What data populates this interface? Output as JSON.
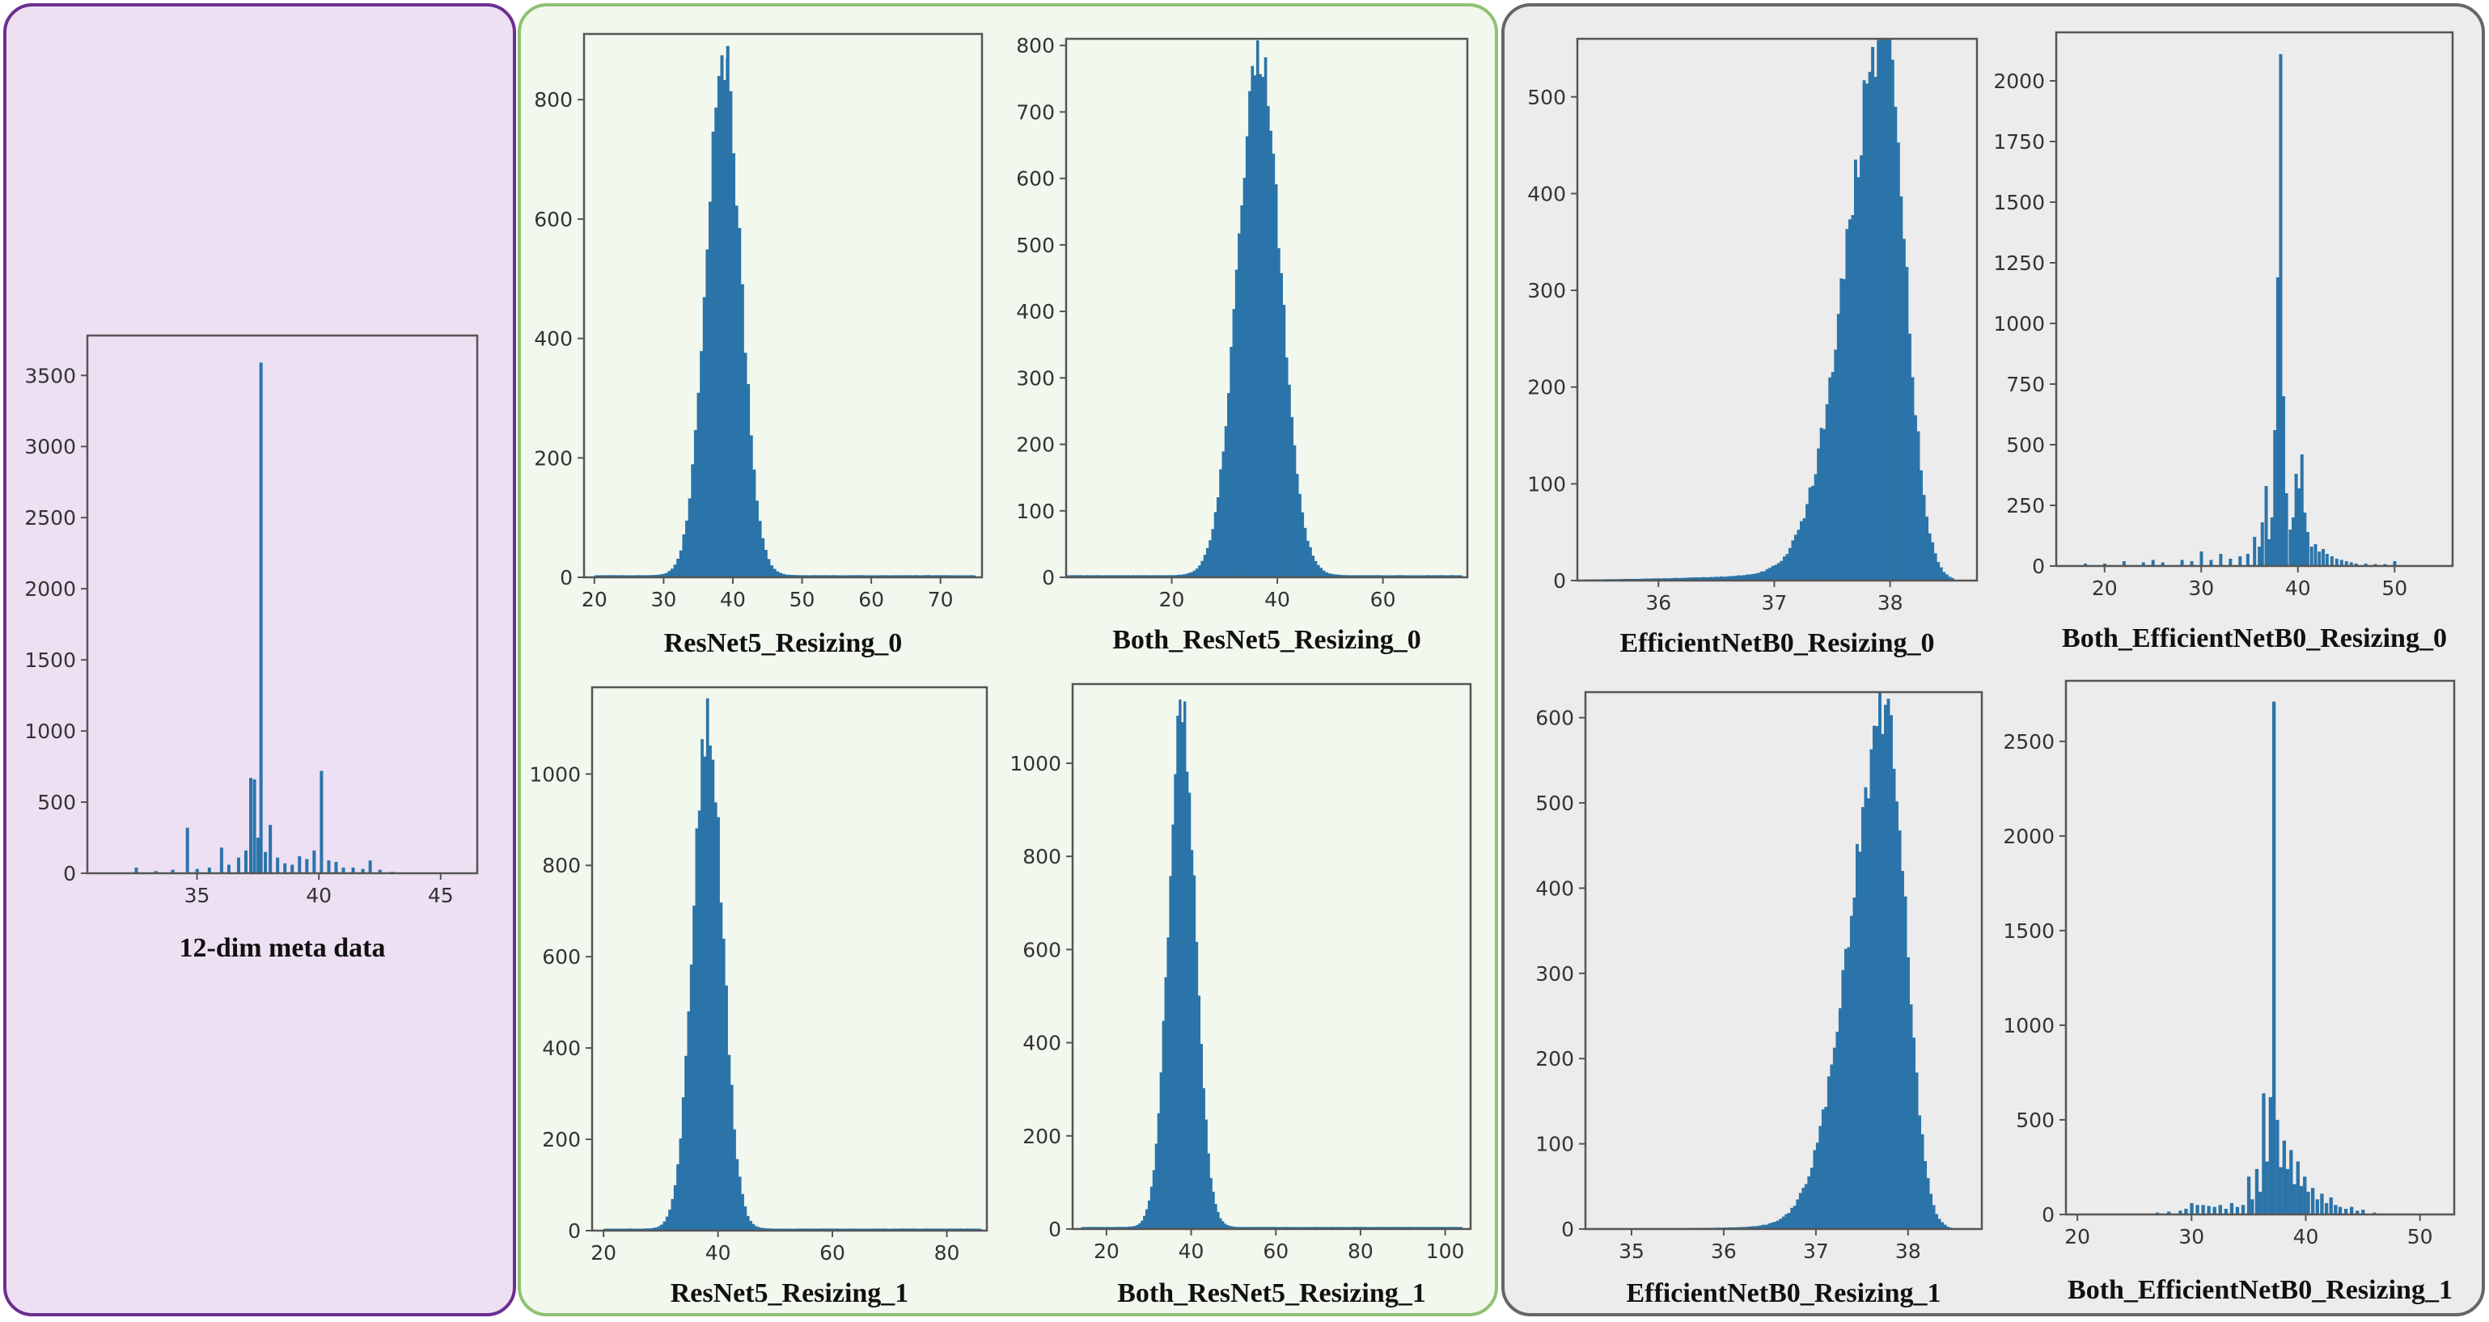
{
  "figure": {
    "groups": [
      {
        "name": "meta",
        "bg": "#ede0f3",
        "border": "#6b2f8f"
      },
      {
        "name": "resnet",
        "bg": "#f2f8ee",
        "border": "#8fc272"
      },
      {
        "name": "efficientnet",
        "bg": "#ececec",
        "border": "#666666"
      }
    ],
    "bar_color": "#2b74a9",
    "axes_color": "#555555"
  },
  "chart_data": [
    {
      "id": "meta",
      "type": "bar",
      "title": "12-dim meta data",
      "xlim": [
        30.5,
        46.5
      ],
      "ylim": [
        0,
        3780
      ],
      "xticks": [
        35,
        40,
        45
      ],
      "yticks": [
        0,
        500,
        1000,
        1500,
        2000,
        2500,
        3000,
        3500
      ],
      "bin_width": 0.12,
      "bins": [
        [
          32.5,
          40
        ],
        [
          33.3,
          15
        ],
        [
          34.0,
          25
        ],
        [
          34.6,
          320
        ],
        [
          35.0,
          30
        ],
        [
          35.5,
          40
        ],
        [
          36.0,
          180
        ],
        [
          36.3,
          60
        ],
        [
          36.7,
          110
        ],
        [
          37.0,
          160
        ],
        [
          37.2,
          670
        ],
        [
          37.35,
          660
        ],
        [
          37.5,
          250
        ],
        [
          37.62,
          3590
        ],
        [
          37.8,
          150
        ],
        [
          38.0,
          340
        ],
        [
          38.3,
          110
        ],
        [
          38.6,
          70
        ],
        [
          38.9,
          60
        ],
        [
          39.2,
          120
        ],
        [
          39.5,
          100
        ],
        [
          39.8,
          160
        ],
        [
          40.1,
          720
        ],
        [
          40.4,
          90
        ],
        [
          40.7,
          80
        ],
        [
          41.0,
          40
        ],
        [
          41.4,
          40
        ],
        [
          41.8,
          30
        ],
        [
          42.1,
          90
        ],
        [
          42.5,
          25
        ],
        [
          43.0,
          10
        ]
      ]
    },
    {
      "id": "r0",
      "type": "bar",
      "title": "ResNet5_Resizing_0",
      "xlim": [
        18.5,
        76
      ],
      "ylim": [
        0,
        910
      ],
      "xticks": [
        20,
        30,
        40,
        50,
        60,
        70
      ],
      "yticks": [
        0,
        200,
        400,
        600,
        800
      ],
      "dist": {
        "kind": "normal",
        "mu": 38.6,
        "sigma": 2.5,
        "peak": 875,
        "from": 20,
        "to": 75,
        "bins": 130,
        "jitter": 0.05
      },
      "spikes": [
        [
          39.2,
          870
        ]
      ]
    },
    {
      "id": "b0",
      "type": "bar",
      "title": "Both_ResNet5_Resizing_0",
      "xlim": [
        0,
        76
      ],
      "ylim": [
        0,
        810
      ],
      "xticks": [
        20,
        40,
        60
      ],
      "yticks": [
        0,
        100,
        200,
        300,
        400,
        500,
        600,
        700,
        800
      ],
      "dist": {
        "kind": "normal",
        "mu": 36.5,
        "sigma": 4.0,
        "peak": 785,
        "from": 0,
        "to": 75,
        "bins": 150,
        "jitter": 0.05
      }
    },
    {
      "id": "e0",
      "type": "bar",
      "title": "EfficientNetB0_Resizing_0",
      "xlim": [
        35.3,
        38.75
      ],
      "ylim": [
        0,
        560
      ],
      "xticks": [
        36,
        37,
        38
      ],
      "yticks": [
        0,
        100,
        200,
        300,
        400,
        500
      ],
      "dist": {
        "kind": "skew",
        "mu": 37.95,
        "sigma_left": 0.33,
        "sigma_right": 0.18,
        "peak": 545,
        "tail": 0.035,
        "from": 35.35,
        "to": 38.55,
        "bins": 130,
        "jitter": 0.07
      }
    },
    {
      "id": "be0",
      "type": "bar",
      "title": "Both_EfficientNetB0_Resizing_0",
      "xlim": [
        15,
        56
      ],
      "ylim": [
        0,
        2200
      ],
      "xticks": [
        20,
        30,
        40,
        50
      ],
      "yticks": [
        0,
        250,
        500,
        750,
        1000,
        1250,
        1500,
        1750,
        2000
      ],
      "bin_width": 0.3,
      "bins": [
        [
          18.0,
          10
        ],
        [
          20.0,
          10
        ],
        [
          22.0,
          20
        ],
        [
          24.0,
          15
        ],
        [
          25.0,
          25
        ],
        [
          26.0,
          15
        ],
        [
          28.0,
          25
        ],
        [
          29.0,
          20
        ],
        [
          30.0,
          60
        ],
        [
          31.0,
          25
        ],
        [
          32.0,
          50
        ],
        [
          33.0,
          30
        ],
        [
          34.0,
          40
        ],
        [
          34.8,
          50
        ],
        [
          35.5,
          120
        ],
        [
          36.0,
          80
        ],
        [
          36.3,
          180
        ],
        [
          36.7,
          330
        ],
        [
          37.0,
          110
        ],
        [
          37.3,
          200
        ],
        [
          37.6,
          560
        ],
        [
          37.9,
          1190
        ],
        [
          38.2,
          2110
        ],
        [
          38.5,
          700
        ],
        [
          38.8,
          300
        ],
        [
          39.2,
          150
        ],
        [
          39.5,
          200
        ],
        [
          39.8,
          380
        ],
        [
          40.1,
          320
        ],
        [
          40.4,
          460
        ],
        [
          40.7,
          220
        ],
        [
          41.0,
          140
        ],
        [
          41.4,
          80
        ],
        [
          41.8,
          90
        ],
        [
          42.2,
          60
        ],
        [
          42.6,
          70
        ],
        [
          43.0,
          50
        ],
        [
          43.5,
          40
        ],
        [
          44.0,
          30
        ],
        [
          44.5,
          25
        ],
        [
          45.0,
          20
        ],
        [
          45.5,
          15
        ],
        [
          46.0,
          10
        ],
        [
          47.0,
          10
        ],
        [
          48.0,
          8
        ],
        [
          49.0,
          8
        ],
        [
          50.0,
          20
        ]
      ]
    },
    {
      "id": "r1",
      "type": "bar",
      "title": "ResNet5_Resizing_1",
      "xlim": [
        18,
        87
      ],
      "ylim": [
        0,
        1190
      ],
      "xticks": [
        20,
        40,
        60,
        80
      ],
      "yticks": [
        0,
        200,
        400,
        600,
        800,
        1000
      ],
      "dist": {
        "kind": "normal",
        "mu": 38.2,
        "sigma": 2.6,
        "peak": 1110,
        "from": 20,
        "to": 86,
        "bins": 140,
        "jitter": 0.05
      }
    },
    {
      "id": "b1",
      "type": "bar",
      "title": "Both_ResNet5_Resizing_1",
      "xlim": [
        12,
        106
      ],
      "ylim": [
        0,
        1170
      ],
      "xticks": [
        20,
        40,
        60,
        80,
        100
      ],
      "yticks": [
        0,
        200,
        400,
        600,
        800,
        1000
      ],
      "dist": {
        "kind": "normal",
        "mu": 37.8,
        "sigma": 3.2,
        "peak": 1100,
        "from": 14,
        "to": 104,
        "bins": 160,
        "jitter": 0.05
      }
    },
    {
      "id": "e1",
      "type": "bar",
      "title": "EfficientNetB0_Resizing_1",
      "xlim": [
        34.5,
        38.8
      ],
      "ylim": [
        0,
        630
      ],
      "xticks": [
        35,
        36,
        37,
        38
      ],
      "yticks": [
        0,
        100,
        200,
        300,
        400,
        500,
        600
      ],
      "dist": {
        "kind": "skew",
        "mu": 37.78,
        "sigma_left": 0.4,
        "sigma_right": 0.2,
        "peak": 600,
        "tail": 0.02,
        "from": 34.6,
        "to": 38.6,
        "bins": 130,
        "jitter": 0.07
      }
    },
    {
      "id": "be1",
      "type": "bar",
      "title": "Both_EfficientNetB0_Resizing_1",
      "xlim": [
        19,
        53
      ],
      "ylim": [
        0,
        2820
      ],
      "xticks": [
        20,
        30,
        40,
        50
      ],
      "yticks": [
        0,
        500,
        1000,
        1500,
        2000,
        2500
      ],
      "bin_width": 0.28,
      "bins": [
        [
          27.0,
          10
        ],
        [
          28.0,
          15
        ],
        [
          29.0,
          20
        ],
        [
          29.5,
          30
        ],
        [
          30.0,
          60
        ],
        [
          30.5,
          50
        ],
        [
          31.0,
          50
        ],
        [
          31.5,
          45
        ],
        [
          32.0,
          40
        ],
        [
          32.5,
          50
        ],
        [
          33.0,
          30
        ],
        [
          33.5,
          60
        ],
        [
          34.0,
          40
        ],
        [
          34.5,
          50
        ],
        [
          35.0,
          200
        ],
        [
          35.3,
          80
        ],
        [
          35.7,
          240
        ],
        [
          36.0,
          120
        ],
        [
          36.3,
          640
        ],
        [
          36.6,
          280
        ],
        [
          36.9,
          620
        ],
        [
          37.2,
          2710
        ],
        [
          37.5,
          500
        ],
        [
          37.8,
          250
        ],
        [
          38.1,
          390
        ],
        [
          38.4,
          240
        ],
        [
          38.7,
          340
        ],
        [
          39.0,
          160
        ],
        [
          39.3,
          280
        ],
        [
          39.6,
          150
        ],
        [
          39.9,
          200
        ],
        [
          40.2,
          120
        ],
        [
          40.6,
          140
        ],
        [
          41.0,
          80
        ],
        [
          41.4,
          110
        ],
        [
          41.8,
          60
        ],
        [
          42.2,
          90
        ],
        [
          42.6,
          50
        ],
        [
          43.0,
          40
        ],
        [
          43.5,
          30
        ],
        [
          44.0,
          40
        ],
        [
          44.5,
          20
        ],
        [
          45.0,
          25
        ],
        [
          46.0,
          10
        ]
      ]
    }
  ]
}
